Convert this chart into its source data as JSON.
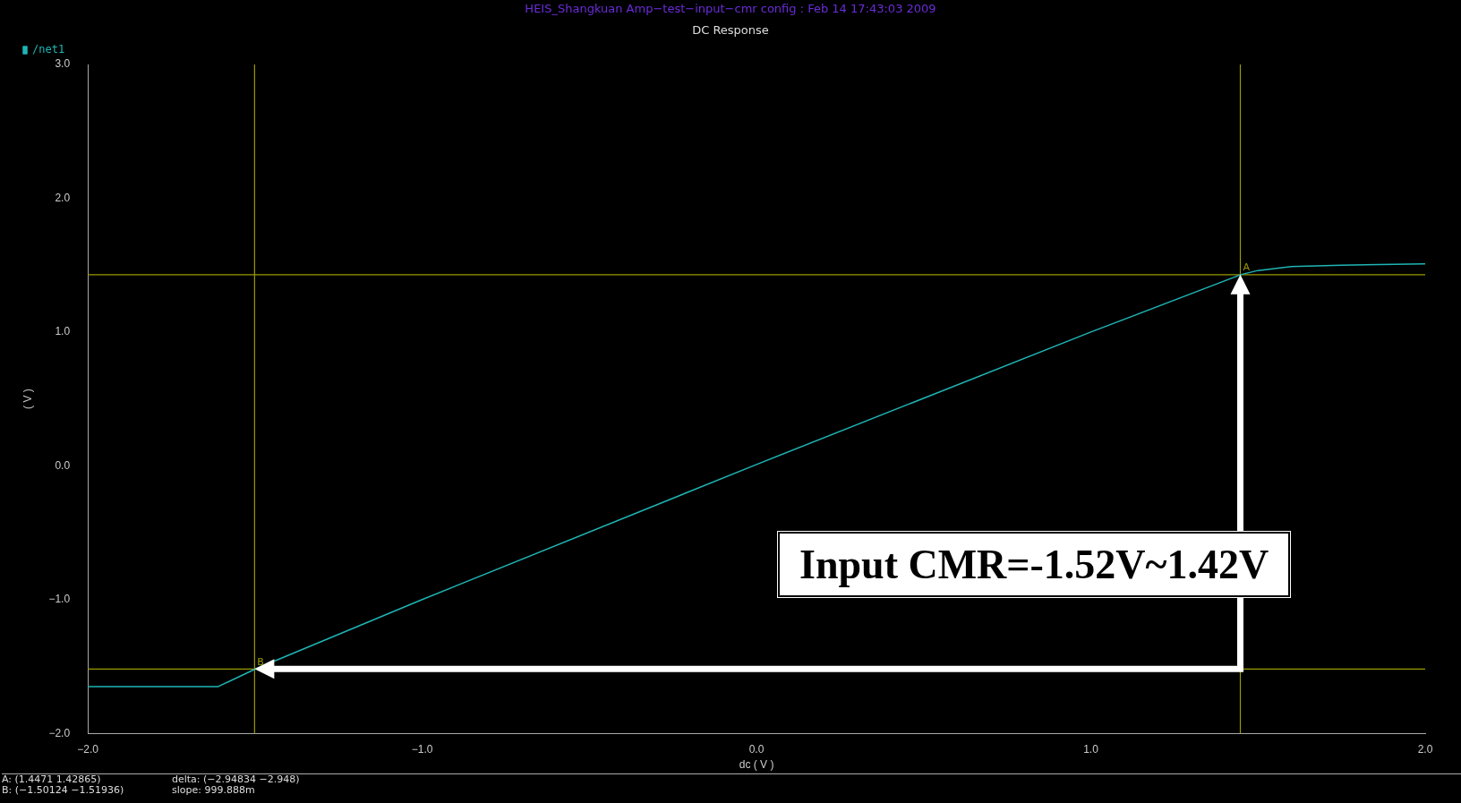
{
  "chart_data": {
    "type": "line",
    "subtitle": "HEIS_Shangkuan Amp−test−input−cmr config : Feb 14 17:43:03 2009",
    "title": "DC Response",
    "xlabel": "dc ( V )",
    "ylabel": "( V )",
    "xlim": [
      -2,
      2
    ],
    "ylim": [
      -2,
      3
    ],
    "xticks": [
      {
        "value": -2,
        "label": "−2.0"
      },
      {
        "value": -1,
        "label": "−1.0"
      },
      {
        "value": 0,
        "label": "0.0"
      },
      {
        "value": 1,
        "label": "1.0"
      },
      {
        "value": 2,
        "label": "2.0"
      }
    ],
    "yticks": [
      {
        "value": -2,
        "label": "−2.0"
      },
      {
        "value": -1,
        "label": "−1.0"
      },
      {
        "value": 0,
        "label": "0.0"
      },
      {
        "value": 1,
        "label": "1.0"
      },
      {
        "value": 2,
        "label": "2.0"
      },
      {
        "value": 3,
        "label": "3.0"
      }
    ],
    "series": [
      {
        "name": "/net1",
        "color": "#1fb5b5",
        "x": [
          -2,
          -1.61,
          -1.5,
          -1,
          0,
          1,
          1.45,
          1.5,
          1.6,
          1.75,
          2
        ],
        "values": [
          -1.65,
          -1.65,
          -1.52,
          -1.0,
          0.01,
          1.0,
          1.43,
          1.46,
          1.49,
          1.5,
          1.51
        ]
      }
    ],
    "ref_lines": [
      {
        "axis": "x",
        "value": -1.50124,
        "label": "B",
        "color": "#9a9a00"
      },
      {
        "axis": "x",
        "value": 1.4471,
        "label": "A",
        "color": "#9a9a00"
      },
      {
        "axis": "y",
        "value": -1.51936,
        "color": "#9a9a00"
      },
      {
        "axis": "y",
        "value": 1.42865,
        "color": "#9a9a00"
      }
    ],
    "annotations": [
      "Input CMR=-1.52V~1.42V",
      "A: (1.4471 1.42865)",
      "B: (−1.50124 −1.51936)",
      "delta: (−2.94834 −2.948)",
      "slope: 999.888m"
    ],
    "legend": "top left",
    "grid": false,
    "marker": "none",
    "line_style": "solid"
  }
}
